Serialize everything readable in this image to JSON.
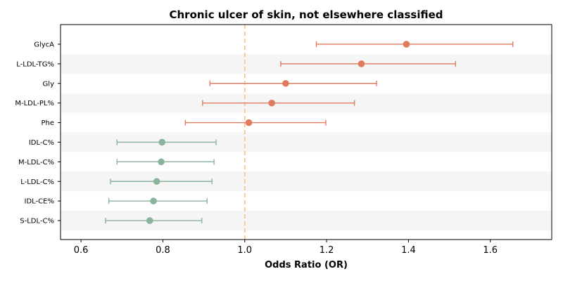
{
  "chart_data": {
    "type": "forest",
    "title": "Chronic ulcer of skin, not elsewhere classified",
    "xlabel": "Odds Ratio (OR)",
    "xlim": [
      0.55,
      1.75
    ],
    "xticks": [
      0.6,
      0.8,
      1.0,
      1.2,
      1.4,
      1.6
    ],
    "reference_line": 1.0,
    "rows": [
      {
        "label": "GlycA",
        "or": 1.395,
        "lower": 1.175,
        "upper": 1.655,
        "color": "#e07b5f"
      },
      {
        "label": "L-LDL-TG%",
        "or": 1.285,
        "lower": 1.088,
        "upper": 1.515,
        "color": "#e07b5f"
      },
      {
        "label": "Gly",
        "or": 1.1,
        "lower": 0.915,
        "upper": 1.322,
        "color": "#e07b5f"
      },
      {
        "label": "M-LDL-PL%",
        "or": 1.066,
        "lower": 0.897,
        "upper": 1.268,
        "color": "#e07b5f"
      },
      {
        "label": "Phe",
        "or": 1.01,
        "lower": 0.855,
        "upper": 1.198,
        "color": "#e07b5f"
      },
      {
        "label": "IDL-C%",
        "or": 0.798,
        "lower": 0.688,
        "upper": 0.93,
        "color": "#88b49c"
      },
      {
        "label": "M-LDL-C%",
        "or": 0.796,
        "lower": 0.688,
        "upper": 0.925,
        "color": "#88b49c"
      },
      {
        "label": "L-LDL-C%",
        "or": 0.785,
        "lower": 0.672,
        "upper": 0.92,
        "color": "#88b49c"
      },
      {
        "label": "IDL-CE%",
        "or": 0.777,
        "lower": 0.668,
        "upper": 0.908,
        "color": "#88b49c"
      },
      {
        "label": "S-LDL-C%",
        "or": 0.768,
        "lower": 0.66,
        "upper": 0.895,
        "color": "#88b49c"
      }
    ],
    "colors": {
      "ref_line": "#f5c27a",
      "band": "#f5f5f5"
    }
  }
}
